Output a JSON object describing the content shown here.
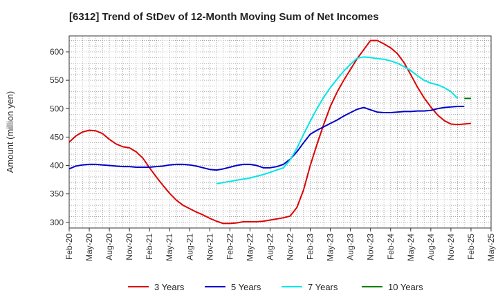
{
  "chart_data": {
    "type": "line",
    "title": "[6312]  Trend of StDev of 12-Month Moving Sum of Net Incomes",
    "ylabel": "Amount (million yen)",
    "xlabel": "",
    "ylim": [
      290,
      628
    ],
    "yticks": [
      300,
      350,
      400,
      450,
      500,
      550,
      600
    ],
    "x_ticks": [
      "Feb-20",
      "May-20",
      "Aug-20",
      "Nov-20",
      "Feb-21",
      "May-21",
      "Aug-21",
      "Nov-21",
      "Feb-22",
      "May-22",
      "Aug-22",
      "Nov-22",
      "Feb-23",
      "May-23",
      "Aug-23",
      "Nov-23",
      "Feb-24",
      "May-24",
      "Aug-24",
      "Nov-24",
      "Feb-25",
      "May-25"
    ],
    "x_start": "Feb-20",
    "grid": true,
    "legend_position": "bottom",
    "series": [
      {
        "name": "3 Years",
        "color": "#dd0000",
        "start_index": 0,
        "values": [
          441,
          452,
          459,
          462,
          461,
          456,
          446,
          438,
          433,
          431,
          424,
          413,
          396,
          380,
          365,
          351,
          339,
          330,
          324,
          318,
          313,
          307,
          302,
          298,
          298,
          299,
          301,
          301,
          301,
          302,
          304,
          306,
          308,
          311,
          326,
          357,
          400,
          437,
          472,
          504,
          529,
          550,
          569,
          588,
          604,
          620,
          620,
          614,
          607,
          597,
          581,
          560,
          538,
          519,
          503,
          489,
          479,
          473,
          472,
          473,
          474
        ]
      },
      {
        "name": "5 Years",
        "color": "#0000cc",
        "start_index": 0,
        "values": [
          394,
          399,
          401,
          402,
          402,
          401,
          400,
          399,
          398,
          398,
          397,
          397,
          397,
          398,
          399,
          401,
          402,
          402,
          401,
          399,
          396,
          393,
          392,
          394,
          397,
          400,
          402,
          402,
          400,
          396,
          396,
          398,
          402,
          411,
          424,
          440,
          455,
          462,
          468,
          474,
          480,
          487,
          493,
          499,
          502,
          498,
          494,
          493,
          493,
          494,
          495,
          495,
          496,
          496,
          497,
          500,
          502,
          503,
          504,
          504
        ]
      },
      {
        "name": "7 Years",
        "color": "#00e5e5",
        "start_index": 22,
        "values": [
          368,
          370,
          372,
          374,
          376,
          378,
          381,
          384,
          388,
          392,
          396,
          410,
          430,
          455,
          478,
          500,
          520,
          537,
          552,
          566,
          578,
          589,
          591,
          590,
          588,
          587,
          584,
          580,
          574,
          567,
          558,
          550,
          545,
          542,
          537,
          530,
          518
        ]
      },
      {
        "name": "10 Years",
        "color": "#008000",
        "start_index": 59,
        "values": [
          518,
          518
        ]
      }
    ]
  }
}
